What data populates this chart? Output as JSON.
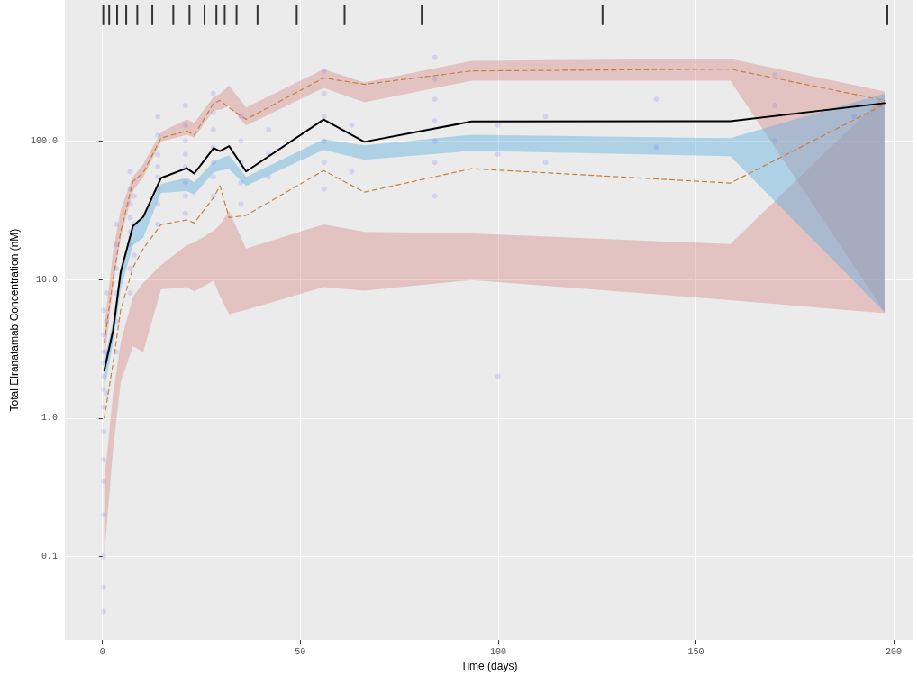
{
  "chart_data": {
    "type": "line",
    "xlabel": "Time (days)",
    "ylabel": "Total Elranatamab Concentration (nM)",
    "xlim": [
      -9.5,
      205
    ],
    "xticks": [
      0,
      50,
      100,
      150,
      200
    ],
    "ylim": [
      0.025,
      1040
    ],
    "yticks": [
      {
        "value": 0.1,
        "label": "0.1"
      },
      {
        "value": 1,
        "label": "1.0"
      },
      {
        "value": 10,
        "label": "10.0"
      },
      {
        "value": 100,
        "label": "100.0"
      }
    ],
    "log": "y",
    "grid": true,
    "series": [
      {
        "type": "scatter",
        "color": "#6666ff",
        "marker": "circle",
        "x": [
          0.3,
          0.3,
          0.3,
          0.3,
          0.3,
          0.3,
          0.3,
          0.3,
          0.3,
          0.3,
          0.3,
          0.3,
          0.3,
          0.3,
          1,
          1,
          1,
          1,
          3.5,
          3.5,
          3.5,
          3.5,
          3.5,
          3.5,
          7,
          7,
          7,
          7,
          7,
          7,
          7,
          7,
          8,
          8,
          8,
          14,
          14,
          14,
          14,
          14,
          14,
          14,
          14,
          21,
          21,
          21,
          21,
          21,
          21,
          21,
          21,
          28,
          28,
          28,
          28,
          28,
          28,
          28,
          35,
          35,
          35,
          35,
          35,
          42,
          42,
          42,
          56,
          56,
          56,
          56,
          56,
          56,
          63,
          63,
          84,
          84,
          84,
          84,
          84,
          84,
          84,
          100,
          100,
          100,
          112,
          112,
          140,
          140,
          170,
          170,
          170,
          190
        ],
        "values": [
          0.04,
          0.06,
          0.1,
          0.2,
          0.35,
          0.5,
          0.8,
          1.2,
          1.6,
          2,
          2.5,
          3,
          4,
          6,
          1.5,
          3,
          5,
          8,
          3,
          5,
          8,
          12,
          18,
          25,
          8,
          12,
          18,
          22,
          28,
          35,
          45,
          60,
          15,
          25,
          40,
          25,
          35,
          45,
          55,
          65,
          80,
          110,
          150,
          30,
          40,
          50,
          65,
          80,
          100,
          130,
          180,
          40,
          55,
          70,
          90,
          120,
          160,
          220,
          35,
          50,
          70,
          100,
          150,
          55,
          80,
          120,
          45,
          70,
          100,
          150,
          220,
          320,
          60,
          130,
          40,
          70,
          100,
          140,
          200,
          280,
          400,
          2.0,
          80,
          130,
          70,
          150,
          90,
          200,
          100,
          180,
          300,
          150
        ]
      },
      {
        "type": "line",
        "color": "#c8803c",
        "line_style": "dashed",
        "marker": "none",
        "x": [
          0.45,
          2.7,
          4.6,
          7.7,
          10.3,
          14.8,
          21.3,
          23.2,
          28.1,
          29.7,
          32.0,
          36.3,
          55.9,
          66.2,
          93.3,
          158.7,
          197.7
        ],
        "values": [
          1.0,
          2.5,
          6,
          12.2,
          16.7,
          24.9,
          26.9,
          25.6,
          39.1,
          47.4,
          28.0,
          29.0,
          61.1,
          42.7,
          63,
          49.6,
          184
        ],
        "lower": [
          0.1,
          0.6,
          1.8,
          3.3,
          3.0,
          8.5,
          8.8,
          8.2,
          9.8,
          7.6,
          5.6,
          6.05,
          8.8,
          8.3,
          9.9,
          7.1,
          5.7
        ],
        "upper": [
          0.35,
          1.5,
          3.5,
          7.5,
          9.5,
          12.7,
          17.7,
          18.5,
          22.5,
          24.9,
          31.2,
          16.7,
          25,
          22.1,
          21.5,
          18,
          215
        ]
      },
      {
        "type": "line",
        "color": "#c8803c",
        "line_style": "dashed",
        "marker": "none",
        "x": [
          0.45,
          2.7,
          4.6,
          7.7,
          10.3,
          14.8,
          21.3,
          23.2,
          28.1,
          29.7,
          32.0,
          36.3,
          55.9,
          66.2,
          93.3,
          158.7,
          197.7
        ],
        "values": [
          3.5,
          10,
          22,
          51,
          59,
          105,
          118,
          110,
          187,
          196,
          174,
          143,
          285,
          256,
          320,
          330,
          196
        ],
        "lower": [
          2.6,
          9,
          20,
          43.4,
          55.1,
          98.6,
          111,
          106,
          166,
          168,
          179,
          129,
          241,
          190,
          272,
          272,
          5.8
        ],
        "upper": [
          4.5,
          16,
          32,
          55.1,
          67.9,
          116,
          143,
          135,
          208,
          218,
          252,
          174,
          330,
          264,
          378,
          392,
          227
        ]
      },
      {
        "color": "#000000",
        "line_style": "solid",
        "marker": "none",
        "x": [
          0.45,
          2.7,
          4.6,
          7.7,
          10.3,
          14.8,
          21.3,
          23.2,
          28.1,
          29.7,
          32.0,
          36.3,
          55.9,
          66.2,
          93.3,
          158.7,
          197.7
        ],
        "values": [
          2.2,
          4.3,
          11.3,
          24.3,
          28.3,
          54,
          63.6,
          58.2,
          88.7,
          84.5,
          91.8,
          60.2,
          142.5,
          98.5,
          138,
          138.7,
          187.5
        ],
        "lower": [
          1.6,
          3.5,
          8.5,
          17.7,
          20,
          42.1,
          43.4,
          40.9,
          59.3,
          61.1,
          63,
          47.4,
          86.1,
          73.1,
          84.9,
          77.6,
          5.8
        ],
        "upper": [
          2.6,
          5,
          12,
          23.9,
          28,
          48.9,
          54.2,
          50.3,
          70.9,
          74.2,
          78.8,
          55.1,
          103,
          92.9,
          111,
          104.6,
          220
        ]
      },
      {
        "type": "bar",
        "color": "#333333",
        "x": [
          0.2,
          1.7,
          3.7,
          6,
          8.8,
          12.6,
          17.9,
          22,
          25.8,
          28.8,
          30.9,
          33.9,
          39.2,
          49.1,
          61.2,
          80.7,
          126.4,
          198.4
        ],
        "base": [
          686,
          686,
          686,
          686,
          686,
          686,
          686,
          686,
          686,
          686,
          686,
          686,
          686,
          686,
          686,
          686,
          686,
          686
        ],
        "values": [
          280,
          280,
          280,
          280,
          280,
          280,
          280,
          280,
          280,
          280,
          280,
          280,
          280,
          280,
          280,
          280,
          280,
          280
        ]
      }
    ]
  }
}
